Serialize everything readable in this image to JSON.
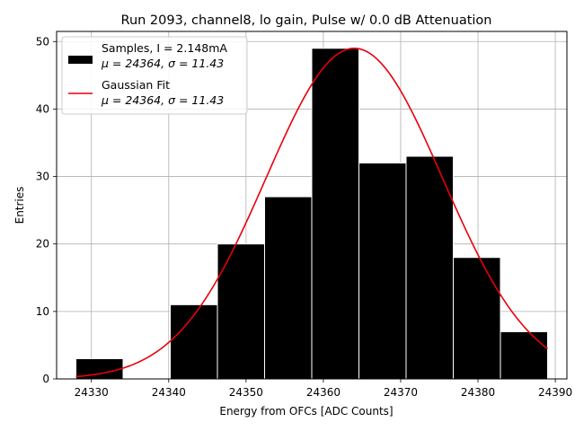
{
  "chart_data": {
    "type": "bar",
    "title": "Run 2093, channel8, lo gain, Pulse w/ 0.0 dB Attenuation",
    "xlabel": "Energy from OFCs [ADC Counts]",
    "ylabel": "Entries",
    "xlim": [
      24325.5,
      24391.5
    ],
    "ylim": [
      0,
      51.5
    ],
    "xticks": [
      24330,
      24340,
      24350,
      24360,
      24370,
      24380,
      24390
    ],
    "yticks": [
      0,
      10,
      20,
      30,
      40,
      50
    ],
    "grid": true,
    "legend_position": "top-left",
    "histogram": {
      "bin_edges": [
        24328,
        24334.1,
        24340.2,
        24346.3,
        24352.4,
        24358.5,
        24364.6,
        24370.7,
        24376.8,
        24382.9,
        24389
      ],
      "counts": [
        3,
        0,
        11,
        20,
        27,
        49,
        32,
        33,
        18,
        7
      ],
      "color": "#000000",
      "edge_color": "#ffffff"
    },
    "fit": {
      "amplitude": 49,
      "mean": 24364,
      "sigma": 11.43,
      "x_start": 24328,
      "x_end": 24389,
      "color": "#e8000b"
    },
    "legend": [
      {
        "line1": "Samples, I = 2.148mA",
        "line2": "μ = 24364, σ = 11.43"
      },
      {
        "line1": "Gaussian Fit",
        "line2": "μ = 24364, σ = 11.43"
      }
    ]
  }
}
